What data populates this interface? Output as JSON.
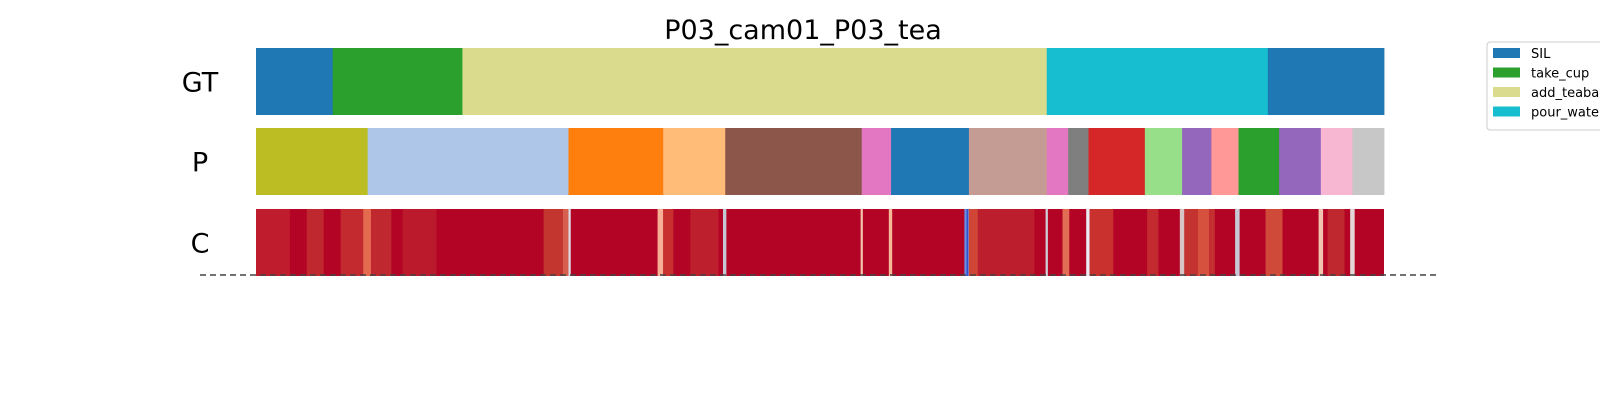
{
  "chart_data": {
    "type": "heatmap",
    "title": "P03_cam01_P03_tea",
    "x_range": [
      0,
      1
    ],
    "rows": [
      {
        "label": "GT",
        "segments": [
          {
            "start": 0.0,
            "end": 0.068,
            "color": "#1f77b4"
          },
          {
            "start": 0.068,
            "end": 0.183,
            "color": "#2ca02c"
          },
          {
            "start": 0.183,
            "end": 0.701,
            "color": "#dbdb8d"
          },
          {
            "start": 0.701,
            "end": 0.897,
            "color": "#17becf"
          },
          {
            "start": 0.897,
            "end": 1.0,
            "color": "#1f77b4"
          }
        ]
      },
      {
        "label": "P",
        "segments": [
          {
            "start": 0.0,
            "end": 0.099,
            "color": "#bcbd22"
          },
          {
            "start": 0.099,
            "end": 0.277,
            "color": "#aec7e8"
          },
          {
            "start": 0.277,
            "end": 0.361,
            "color": "#ff7f0e"
          },
          {
            "start": 0.361,
            "end": 0.416,
            "color": "#ffbb78"
          },
          {
            "start": 0.416,
            "end": 0.537,
            "color": "#8c564b"
          },
          {
            "start": 0.537,
            "end": 0.563,
            "color": "#e377c2"
          },
          {
            "start": 0.563,
            "end": 0.632,
            "color": "#1f77b4"
          },
          {
            "start": 0.632,
            "end": 0.701,
            "color": "#c49c94"
          },
          {
            "start": 0.701,
            "end": 0.72,
            "color": "#e377c2"
          },
          {
            "start": 0.72,
            "end": 0.738,
            "color": "#7f7f7f"
          },
          {
            "start": 0.738,
            "end": 0.788,
            "color": "#d62728"
          },
          {
            "start": 0.788,
            "end": 0.821,
            "color": "#98df8a"
          },
          {
            "start": 0.821,
            "end": 0.847,
            "color": "#9467bd"
          },
          {
            "start": 0.847,
            "end": 0.871,
            "color": "#ff9896"
          },
          {
            "start": 0.871,
            "end": 0.907,
            "color": "#2ca02c"
          },
          {
            "start": 0.907,
            "end": 0.944,
            "color": "#9467bd"
          },
          {
            "start": 0.944,
            "end": 0.972,
            "color": "#f7b6d2"
          },
          {
            "start": 0.972,
            "end": 1.0,
            "color": "#c7c7c7"
          }
        ]
      },
      {
        "label": "C",
        "base_color": "#b40426",
        "shades": [
          {
            "start": 0.0,
            "end": 0.03,
            "color": "#bf1d2d"
          },
          {
            "start": 0.045,
            "end": 0.06,
            "color": "#c0282f"
          },
          {
            "start": 0.075,
            "end": 0.095,
            "color": "#c22a30"
          },
          {
            "start": 0.095,
            "end": 0.102,
            "color": "#e3694f"
          },
          {
            "start": 0.102,
            "end": 0.12,
            "color": "#c0282f"
          },
          {
            "start": 0.13,
            "end": 0.16,
            "color": "#ba1a2b"
          },
          {
            "start": 0.255,
            "end": 0.272,
            "color": "#c3362f"
          },
          {
            "start": 0.272,
            "end": 0.277,
            "color": "#d6604d"
          },
          {
            "start": 0.277,
            "end": 0.279,
            "color": "#dcdde7"
          },
          {
            "start": 0.356,
            "end": 0.361,
            "color": "#f6b096"
          },
          {
            "start": 0.361,
            "end": 0.37,
            "color": "#c7302f"
          },
          {
            "start": 0.385,
            "end": 0.41,
            "color": "#bd1f2d"
          },
          {
            "start": 0.414,
            "end": 0.417,
            "color": "#c6c7d4"
          },
          {
            "start": 0.536,
            "end": 0.538,
            "color": "#f3c2a9"
          },
          {
            "start": 0.561,
            "end": 0.564,
            "color": "#f6b896"
          },
          {
            "start": 0.628,
            "end": 0.632,
            "color": "#6b8fe0"
          },
          {
            "start": 0.63,
            "end": 0.631,
            "color": "#1e3fc8"
          },
          {
            "start": 0.632,
            "end": 0.64,
            "color": "#cf4536"
          },
          {
            "start": 0.64,
            "end": 0.69,
            "color": "#bd1e2d"
          },
          {
            "start": 0.7,
            "end": 0.702,
            "color": "#cfd0dc"
          },
          {
            "start": 0.715,
            "end": 0.721,
            "color": "#e06d54"
          },
          {
            "start": 0.736,
            "end": 0.739,
            "color": "#e9ecf0"
          },
          {
            "start": 0.739,
            "end": 0.76,
            "color": "#c9312f"
          },
          {
            "start": 0.79,
            "end": 0.8,
            "color": "#c22a30"
          },
          {
            "start": 0.819,
            "end": 0.823,
            "color": "#d7c4c4"
          },
          {
            "start": 0.823,
            "end": 0.835,
            "color": "#c53330"
          },
          {
            "start": 0.835,
            "end": 0.845,
            "color": "#d6523e"
          },
          {
            "start": 0.845,
            "end": 0.85,
            "color": "#c3302f"
          },
          {
            "start": 0.868,
            "end": 0.872,
            "color": "#c6c8d6"
          },
          {
            "start": 0.895,
            "end": 0.91,
            "color": "#d04a3a"
          },
          {
            "start": 0.942,
            "end": 0.946,
            "color": "#f2c4b0"
          },
          {
            "start": 0.95,
            "end": 0.965,
            "color": "#c0282f"
          },
          {
            "start": 0.97,
            "end": 0.974,
            "color": "#e3d7d7"
          }
        ]
      }
    ],
    "legend": {
      "placement": "right",
      "entries": [
        {
          "label": "SIL",
          "color": "#1f77b4"
        },
        {
          "label": "take_cup",
          "color": "#2ca02c"
        },
        {
          "label": "add_teabag",
          "color": "#dbdb8d"
        },
        {
          "label": "pour_water",
          "color": "#17becf"
        }
      ]
    }
  }
}
